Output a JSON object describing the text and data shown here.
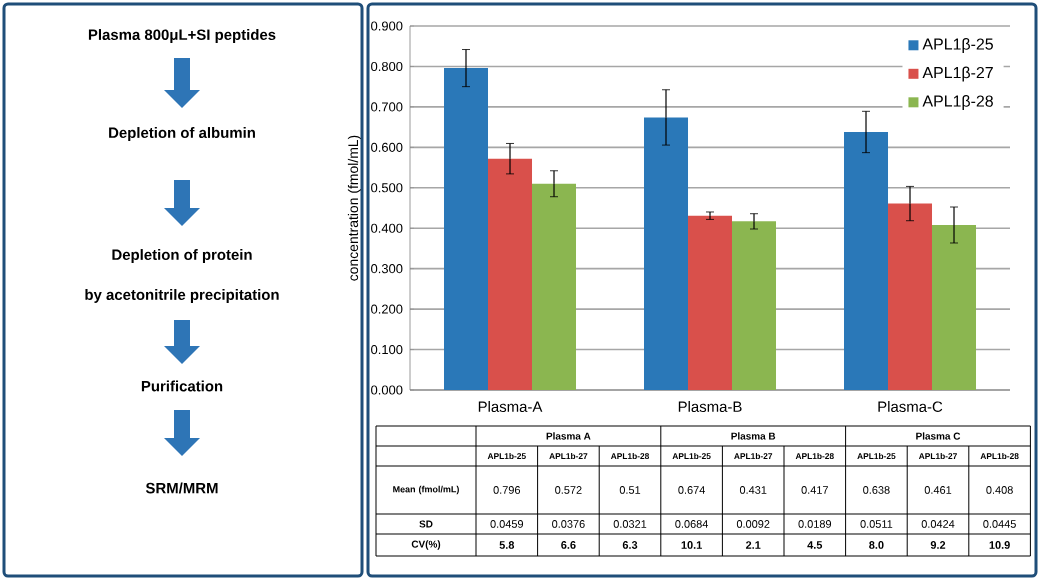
{
  "chart_data": {
    "type": "bar",
    "ylabel": "concentration (fmol/mL)",
    "categories": [
      "Plasma-A",
      "Plasma-B",
      "Plasma-C"
    ],
    "series": [
      {
        "name": "APL1β-25",
        "color": "#2a78b8",
        "values": [
          0.796,
          0.674,
          0.638
        ],
        "errors": [
          0.0459,
          0.0684,
          0.0511
        ]
      },
      {
        "name": "APL1β-27",
        "color": "#d9504b",
        "values": [
          0.572,
          0.431,
          0.461
        ],
        "errors": [
          0.0376,
          0.0092,
          0.0424
        ]
      },
      {
        "name": "APL1β-28",
        "color": "#8bb650",
        "values": [
          0.51,
          0.417,
          0.408
        ],
        "errors": [
          0.0321,
          0.0189,
          0.0445
        ]
      }
    ],
    "ylim": [
      0,
      0.9
    ],
    "yticks": [
      {
        "value": 0,
        "label": "0.000"
      },
      {
        "value": 0.1,
        "label": "0.100"
      },
      {
        "value": 0.2,
        "label": "0.200"
      },
      {
        "value": 0.3,
        "label": "0.300"
      },
      {
        "value": 0.4,
        "label": "0.400"
      },
      {
        "value": 0.5,
        "label": "0.500"
      },
      {
        "value": 0.6,
        "label": "0.600"
      },
      {
        "value": 0.7,
        "label": "0.700"
      },
      {
        "value": 0.8,
        "label": "0.800"
      },
      {
        "value": 0.9,
        "label": "0.900"
      }
    ],
    "grid": "y",
    "legend": "top right",
    "annotations": [
      "Plasma 800μL+SI peptides",
      "Depletion of albumin",
      "Depletion of protein",
      "by acetonitrile precipitation",
      "Purification",
      "SRM/MRM",
      "Plasma A",
      "Plasma B",
      "Plasma C",
      "APL1b-25",
      "APL1b-27",
      "APL1b-28",
      "Mean (fmol/mL)",
      "SD",
      "CV(%)",
      "5.8",
      "6.6",
      "6.3",
      "10.1",
      "2.1",
      "4.5",
      "8.0",
      "9.2",
      "10.9",
      "0.0459",
      "0.0376",
      "0.0321",
      "0.0684",
      "0.0092",
      "0.0189",
      "0.0511",
      "0.0424",
      "0.0445",
      "0.796",
      "0.572",
      "0.51",
      "0.674",
      "0.431",
      "0.417",
      "0.638",
      "0.461",
      "0.408"
    ]
  }
}
